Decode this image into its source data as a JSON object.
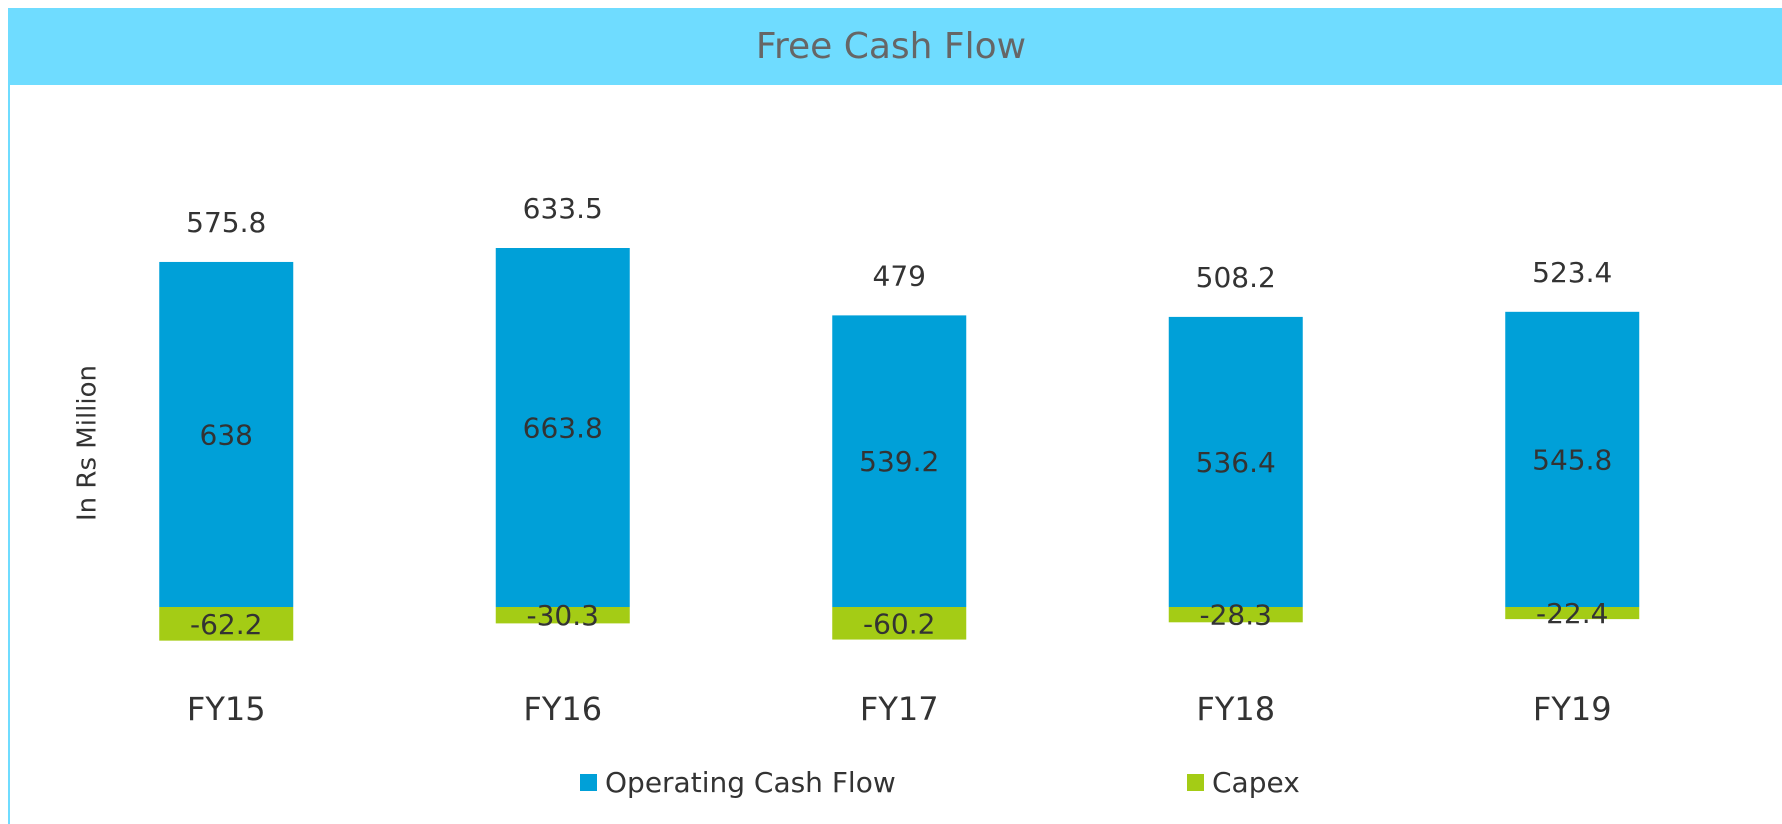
{
  "chart_data": {
    "type": "bar",
    "stacked": true,
    "title": "Free Cash Flow",
    "y_label": "In Rs Million",
    "categories": [
      "FY15",
      "FY16",
      "FY17",
      "FY18",
      "FY19"
    ],
    "series": [
      {
        "name": "Operating Cash Flow",
        "color": "#00a0d8",
        "values": [
          638,
          663.8,
          539.2,
          536.4,
          545.8
        ]
      },
      {
        "name": "Capex",
        "color": "#a4cc15",
        "values": [
          -62.2,
          -30.3,
          -60.2,
          -28.3,
          -22.4
        ]
      }
    ],
    "totals": [
      575.8,
      633.5,
      479,
      508.2,
      523.4
    ],
    "legend": "bottom"
  }
}
